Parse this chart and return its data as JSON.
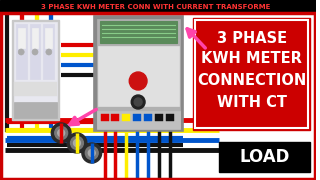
{
  "title_text": "3 PHASE KWH METER CONN WITH CURRENT TRANSFORME",
  "title_bg": "#000000",
  "title_fg": "#ff3333",
  "red_box_text": [
    "3 PHASE",
    "KWH METER",
    "CONNECTION",
    "WITH CT"
  ],
  "red_box_color": "#cc0000",
  "red_box_border": "#ffffff",
  "load_box_color": "#000000",
  "load_text": "LOAD",
  "bg_color": "#ffffff",
  "wire_red": "#dd0000",
  "wire_yellow": "#ffee00",
  "wire_blue": "#0055cc",
  "wire_black": "#111111",
  "outer_border": "#cc0000",
  "ct_outer": "#333333",
  "ct_inner": "#777777",
  "ct_hole": "#bbbbbb",
  "arrow_color": "#ff44aa",
  "mcb_body": "#c8c8c8",
  "mcb_white": "#e8e8f0",
  "meter_body": "#909090",
  "meter_lcd": "#5a8a5a",
  "meter_lcd_bright": "#88cc88"
}
